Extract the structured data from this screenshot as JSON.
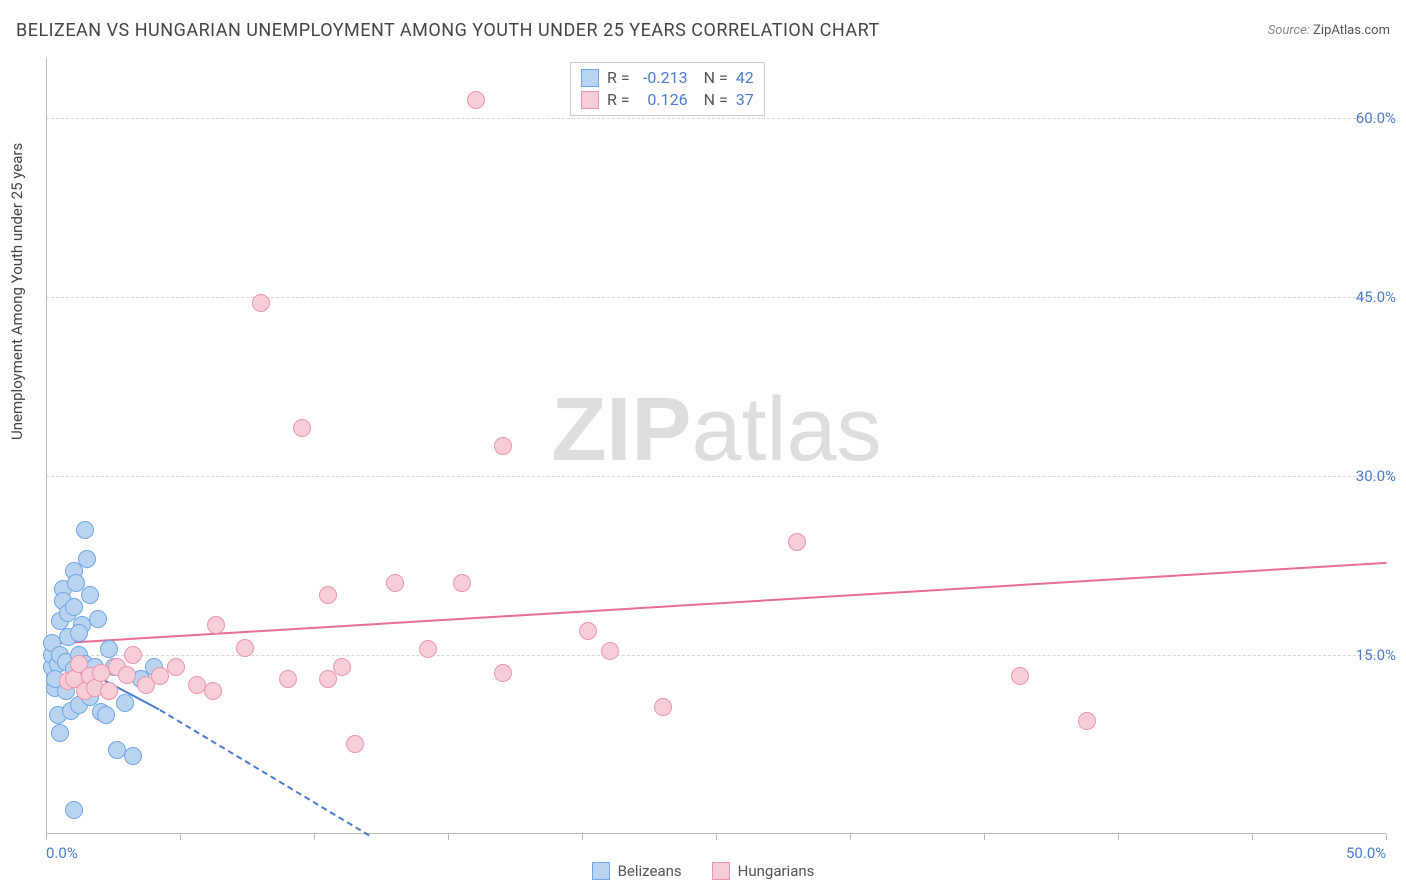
{
  "title": "BELIZEAN VS HUNGARIAN UNEMPLOYMENT AMONG YOUTH UNDER 25 YEARS CORRELATION CHART",
  "source_label": "Source:",
  "source_name": "ZipAtlas.com",
  "y_axis_label": "Unemployment Among Youth under 25 years",
  "watermark": {
    "bold": "ZIP",
    "light": "atlas"
  },
  "chart": {
    "type": "scatter",
    "xlim": [
      0,
      50
    ],
    "ylim": [
      0,
      65
    ],
    "x_ticks": [
      0,
      5,
      10,
      15,
      20,
      25,
      30,
      35,
      40,
      45,
      50
    ],
    "x_tick_labels": {
      "0": "0.0%",
      "50": "50.0%"
    },
    "y_grid": [
      15,
      30,
      45,
      60
    ],
    "y_tick_labels": {
      "15": "15.0%",
      "30": "30.0%",
      "45": "45.0%",
      "60": "60.0%"
    },
    "y_tick_color": "#4a7bd0",
    "x_tick_color": "#4a7bd0",
    "grid_color": "#d5d5d5",
    "background_color": "#ffffff",
    "marker_radius": 9,
    "series": [
      {
        "name": "Belizeans",
        "fill": "#b9d4f1",
        "stroke": "#6fa6e3",
        "R": "-0.213",
        "N": "42",
        "trend": {
          "x1": 0,
          "y1": 15.5,
          "x2": 4.2,
          "y2": 10.5,
          "dash_to_x": 12.0,
          "dash_to_y": 0,
          "color": "#4a7bd0"
        },
        "points": [
          [
            0.2,
            14.0
          ],
          [
            0.2,
            15.0
          ],
          [
            0.2,
            16.0
          ],
          [
            0.3,
            12.2
          ],
          [
            0.4,
            10.0
          ],
          [
            0.4,
            14.2
          ],
          [
            0.5,
            17.8
          ],
          [
            0.5,
            15.0
          ],
          [
            0.6,
            20.5
          ],
          [
            0.6,
            19.5
          ],
          [
            0.7,
            14.4
          ],
          [
            0.7,
            12.0
          ],
          [
            0.8,
            16.5
          ],
          [
            0.8,
            18.5
          ],
          [
            0.9,
            10.3
          ],
          [
            1.0,
            19.0
          ],
          [
            1.0,
            22.0
          ],
          [
            1.0,
            13.8
          ],
          [
            1.1,
            21.0
          ],
          [
            1.2,
            15.0
          ],
          [
            1.2,
            10.8
          ],
          [
            1.3,
            17.5
          ],
          [
            1.4,
            25.5
          ],
          [
            1.4,
            14.2
          ],
          [
            1.5,
            23.0
          ],
          [
            1.6,
            11.5
          ],
          [
            1.6,
            20.0
          ],
          [
            1.8,
            14.0
          ],
          [
            1.9,
            18.0
          ],
          [
            2.0,
            10.2
          ],
          [
            2.2,
            10.0
          ],
          [
            2.3,
            15.5
          ],
          [
            2.5,
            14.0
          ],
          [
            2.6,
            7.0
          ],
          [
            2.9,
            11.0
          ],
          [
            3.2,
            6.5
          ],
          [
            3.5,
            13.0
          ],
          [
            4.0,
            14.0
          ],
          [
            1.0,
            2.0
          ],
          [
            0.5,
            8.5
          ],
          [
            0.3,
            13.0
          ],
          [
            1.2,
            16.8
          ]
        ]
      },
      {
        "name": "Hungarians",
        "fill": "#f7cdd8",
        "stroke": "#ea95ac",
        "R": "0.126",
        "N": "37",
        "trend": {
          "x1": 0,
          "y1": 16.0,
          "x2": 50,
          "y2": 22.8,
          "color": "#e86c94"
        },
        "points": [
          [
            0.8,
            12.8
          ],
          [
            1.0,
            13.0
          ],
          [
            1.2,
            14.2
          ],
          [
            1.4,
            12.0
          ],
          [
            1.6,
            13.2
          ],
          [
            1.8,
            12.2
          ],
          [
            2.0,
            13.5
          ],
          [
            2.3,
            12.0
          ],
          [
            2.6,
            14.0
          ],
          [
            3.0,
            13.3
          ],
          [
            3.2,
            15.0
          ],
          [
            3.7,
            12.5
          ],
          [
            4.2,
            13.2
          ],
          [
            4.8,
            14.0
          ],
          [
            5.6,
            12.5
          ],
          [
            6.2,
            12.0
          ],
          [
            6.3,
            17.5
          ],
          [
            7.4,
            15.6
          ],
          [
            8.0,
            44.5
          ],
          [
            9.0,
            13.0
          ],
          [
            9.5,
            34.0
          ],
          [
            10.5,
            13.0
          ],
          [
            10.5,
            20.0
          ],
          [
            11.0,
            14.0
          ],
          [
            11.5,
            7.5
          ],
          [
            13.0,
            21.0
          ],
          [
            14.2,
            15.5
          ],
          [
            15.5,
            21.0
          ],
          [
            16.0,
            61.5
          ],
          [
            17.0,
            13.5
          ],
          [
            17.0,
            32.5
          ],
          [
            20.2,
            17.0
          ],
          [
            21.0,
            15.3
          ],
          [
            23.0,
            10.6
          ],
          [
            28.0,
            24.5
          ],
          [
            36.3,
            13.2
          ],
          [
            38.8,
            9.5
          ]
        ]
      }
    ]
  },
  "stats_box": {
    "label_R": "R =",
    "label_N": "N =",
    "value_color": "#4a7bd0"
  },
  "legend": [
    {
      "name": "Belizeans",
      "fill": "#b9d4f1",
      "stroke": "#6fa6e3"
    },
    {
      "name": "Hungarians",
      "fill": "#f7cdd8",
      "stroke": "#ea95ac"
    }
  ]
}
